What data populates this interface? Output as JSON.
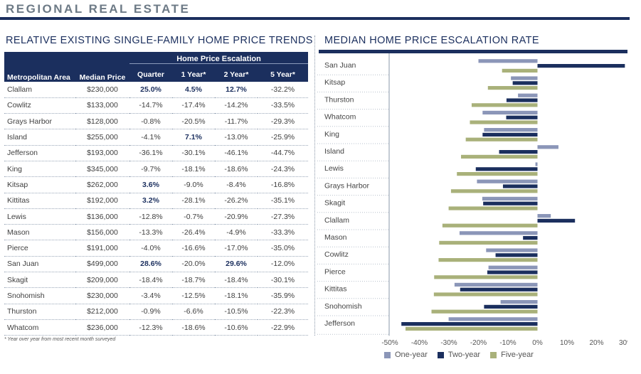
{
  "page_title": "REGIONAL REAL ESTATE",
  "table_section_title": "RELATIVE EXISTING SINGLE-FAMILY HOME PRICE TRENDS",
  "chart_section_title": "MEDIAN HOME PRICE ESCALATION RATE",
  "table": {
    "header": {
      "area": "Metropolitan Area",
      "median": "Median Price",
      "group": "Home Price Escalation",
      "quarter": "Quarter",
      "year1": "1 Year*",
      "year2": "2 Year*",
      "year5": "5 Year*"
    },
    "rows": [
      {
        "area": "Clallam",
        "median": "$230,000",
        "quarter": "25.0%",
        "year1": "4.5%",
        "year2": "12.7%",
        "year5": "-32.2%"
      },
      {
        "area": "Cowlitz",
        "median": "$133,000",
        "quarter": "-14.7%",
        "year1": "-17.4%",
        "year2": "-14.2%",
        "year5": "-33.5%"
      },
      {
        "area": "Grays Harbor",
        "median": "$128,000",
        "quarter": "-0.8%",
        "year1": "-20.5%",
        "year2": "-11.7%",
        "year5": "-29.3%"
      },
      {
        "area": "Island",
        "median": "$255,000",
        "quarter": "-4.1%",
        "year1": "7.1%",
        "year2": "-13.0%",
        "year5": "-25.9%"
      },
      {
        "area": "Jefferson",
        "median": "$193,000",
        "quarter": "-36.1%",
        "year1": "-30.1%",
        "year2": "-46.1%",
        "year5": "-44.7%"
      },
      {
        "area": "King",
        "median": "$345,000",
        "quarter": "-9.7%",
        "year1": "-18.1%",
        "year2": "-18.6%",
        "year5": "-24.3%"
      },
      {
        "area": "Kitsap",
        "median": "$262,000",
        "quarter": "3.6%",
        "year1": "-9.0%",
        "year2": "-8.4%",
        "year5": "-16.8%"
      },
      {
        "area": "Kittitas",
        "median": "$192,000",
        "quarter": "3.2%",
        "year1": "-28.1%",
        "year2": "-26.2%",
        "year5": "-35.1%"
      },
      {
        "area": "Lewis",
        "median": "$136,000",
        "quarter": "-12.8%",
        "year1": "-0.7%",
        "year2": "-20.9%",
        "year5": "-27.3%"
      },
      {
        "area": "Mason",
        "median": "$156,000",
        "quarter": "-13.3%",
        "year1": "-26.4%",
        "year2": "-4.9%",
        "year5": "-33.3%"
      },
      {
        "area": "Pierce",
        "median": "$191,000",
        "quarter": "-4.0%",
        "year1": "-16.6%",
        "year2": "-17.0%",
        "year5": "-35.0%"
      },
      {
        "area": "San Juan",
        "median": "$499,000",
        "quarter": "28.6%",
        "year1": "-20.0%",
        "year2": "29.6%",
        "year5": "-12.0%"
      },
      {
        "area": "Skagit",
        "median": "$209,000",
        "quarter": "-18.4%",
        "year1": "-18.7%",
        "year2": "-18.4%",
        "year5": "-30.1%"
      },
      {
        "area": "Snohomish",
        "median": "$230,000",
        "quarter": "-3.4%",
        "year1": "-12.5%",
        "year2": "-18.1%",
        "year5": "-35.9%"
      },
      {
        "area": "Thurston",
        "median": "$212,000",
        "quarter": "-0.9%",
        "year1": "-6.6%",
        "year2": "-10.5%",
        "year5": "-22.3%"
      },
      {
        "area": "Whatcom",
        "median": "$236,000",
        "quarter": "-12.3%",
        "year1": "-18.6%",
        "year2": "-10.6%",
        "year5": "-22.9%"
      }
    ],
    "bold_cells": [
      [
        0,
        "quarter"
      ],
      [
        0,
        "year1"
      ],
      [
        0,
        "year2"
      ],
      [
        3,
        "year1"
      ],
      [
        6,
        "quarter"
      ],
      [
        7,
        "quarter"
      ],
      [
        11,
        "quarter"
      ],
      [
        11,
        "year2"
      ]
    ],
    "footnote": "* Year over year from most recent month surveyed"
  },
  "chart_data": {
    "type": "bar",
    "orientation": "horizontal",
    "title": "MEDIAN HOME PRICE ESCALATION RATE",
    "categories": [
      "San Juan",
      "Kitsap",
      "Thurston",
      "Whatcom",
      "King",
      "Island",
      "Lewis",
      "Grays Harbor",
      "Skagit",
      "Clallam",
      "Mason",
      "Cowlitz",
      "Pierce",
      "Kittitas",
      "Snohomish",
      "Jefferson"
    ],
    "series": [
      {
        "name": "One-year",
        "color": "#8b96b8",
        "values": [
          -20.0,
          -9.0,
          -6.6,
          -18.6,
          -18.1,
          7.1,
          -0.7,
          -20.5,
          -18.7,
          4.5,
          -26.4,
          -17.4,
          -16.6,
          -28.1,
          -12.5,
          -30.1
        ]
      },
      {
        "name": "Two-year",
        "color": "#1b2f5e",
        "values": [
          29.6,
          -8.4,
          -10.5,
          -10.6,
          -18.6,
          -13.0,
          -20.9,
          -11.7,
          -18.4,
          12.7,
          -4.9,
          -14.2,
          -17.0,
          -26.2,
          -18.1,
          -46.1
        ]
      },
      {
        "name": "Five-year",
        "color": "#a9b17a",
        "values": [
          -12.0,
          -16.8,
          -22.3,
          -22.9,
          -24.3,
          -25.9,
          -27.3,
          -29.3,
          -30.1,
          -32.2,
          -33.3,
          -33.5,
          -35.0,
          -35.1,
          -35.9,
          -44.7
        ]
      }
    ],
    "xlim": [
      -50,
      30
    ],
    "xticks": [
      -50,
      -40,
      -30,
      -20,
      -10,
      0,
      10,
      20,
      30
    ],
    "xtick_labels": [
      "-50%",
      "-40%",
      "-30%",
      "-20%",
      "-10%",
      "0%",
      "10%",
      "20%",
      "30%"
    ],
    "legend_position": "bottom"
  }
}
